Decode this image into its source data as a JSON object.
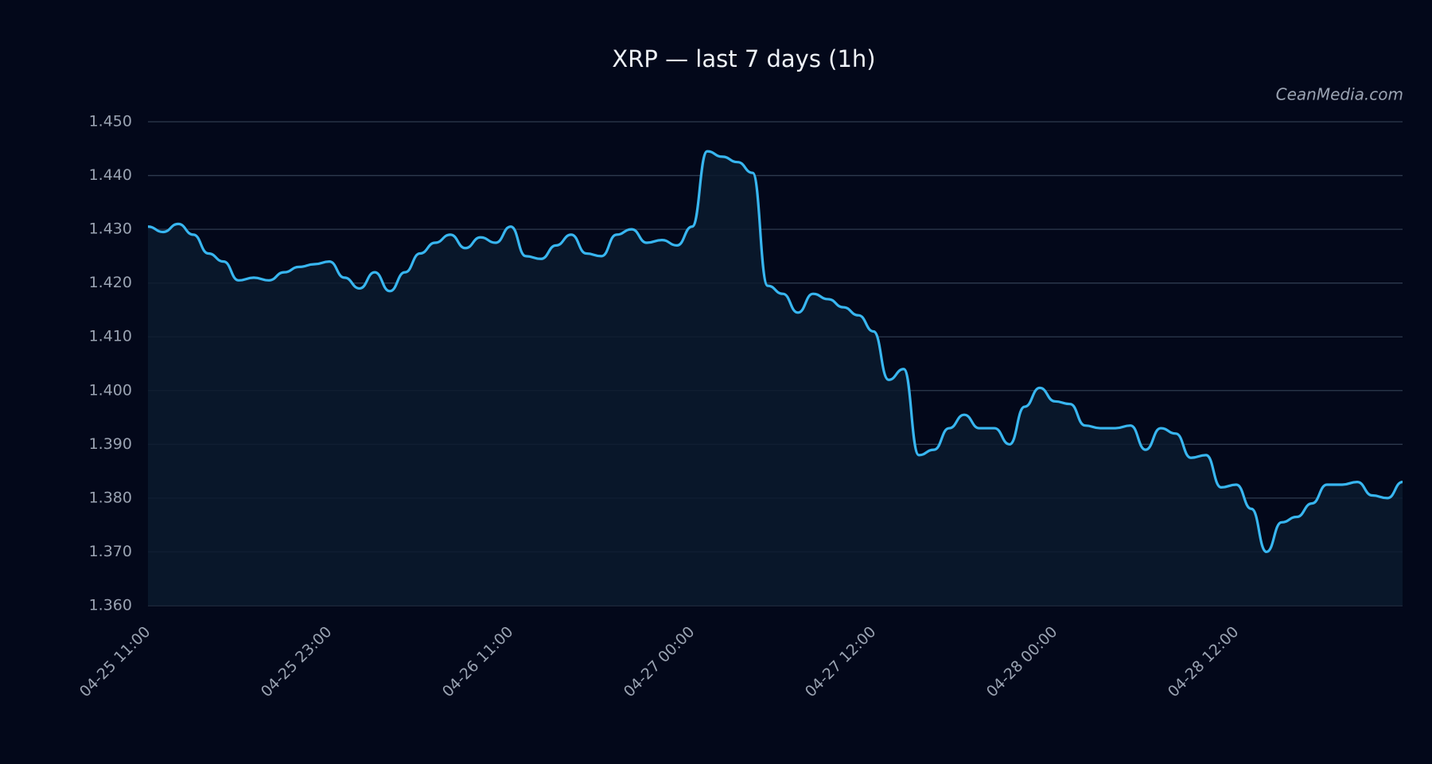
{
  "chart_data": {
    "type": "line",
    "title": "XRP — last 7 days (1h)",
    "watermark": "CeanMedia.com",
    "color": "#38b6f0",
    "fill": true,
    "grid": true,
    "categories": [
      "04-25 11:00",
      null,
      null,
      null,
      null,
      null,
      null,
      null,
      null,
      null,
      null,
      null,
      "04-25 23:00",
      null,
      null,
      null,
      null,
      null,
      null,
      null,
      null,
      null,
      null,
      null,
      "04-26 11:00",
      null,
      null,
      null,
      null,
      null,
      null,
      null,
      null,
      null,
      null,
      null,
      "04-27 00:00",
      null,
      null,
      null,
      null,
      null,
      null,
      null,
      null,
      null,
      null,
      null,
      "04-27 12:00",
      null,
      null,
      null,
      null,
      null,
      null,
      null,
      null,
      null,
      null,
      null,
      "04-28 00:00",
      null,
      null,
      null,
      null,
      null,
      null,
      null,
      null,
      null,
      null,
      null,
      "04-28 12:00",
      null,
      null,
      null,
      null,
      null,
      null,
      null,
      null,
      null,
      null,
      null
    ],
    "values": [
      1.4305,
      1.4295,
      1.431,
      1.429,
      1.4255,
      1.424,
      1.4205,
      1.421,
      1.4205,
      1.422,
      1.423,
      1.4235,
      1.424,
      1.421,
      1.419,
      1.422,
      1.4185,
      1.422,
      1.4255,
      1.4275,
      1.429,
      1.4265,
      1.4285,
      1.4275,
      1.4305,
      1.425,
      1.4245,
      1.427,
      1.429,
      1.4255,
      1.425,
      1.429,
      1.43,
      1.4275,
      1.428,
      1.427,
      1.4305,
      1.4445,
      1.4435,
      1.4425,
      1.4405,
      1.4195,
      1.418,
      1.4145,
      1.418,
      1.417,
      1.4155,
      1.414,
      1.411,
      1.402,
      1.404,
      1.388,
      1.389,
      1.393,
      1.3955,
      1.393,
      1.393,
      1.39,
      1.397,
      1.4005,
      1.398,
      1.3975,
      1.3935,
      1.393,
      1.393,
      1.3935,
      1.389,
      1.393,
      1.392,
      1.3875,
      1.388,
      1.382,
      1.3825,
      1.378,
      1.37,
      1.3755,
      1.3765,
      1.379,
      1.3825,
      1.3825,
      1.383,
      1.3805,
      1.38,
      1.383
    ],
    "ylim": [
      1.36,
      1.45
    ],
    "yticks": [
      {
        "value": 1.36,
        "label": "1.360"
      },
      {
        "value": 1.37,
        "label": "1.370"
      },
      {
        "value": 1.38,
        "label": "1.380"
      },
      {
        "value": 1.39,
        "label": "1.390"
      },
      {
        "value": 1.4,
        "label": "1.400"
      },
      {
        "value": 1.41,
        "label": "1.410"
      },
      {
        "value": 1.42,
        "label": "1.420"
      },
      {
        "value": 1.43,
        "label": "1.430"
      },
      {
        "value": 1.44,
        "label": "1.440"
      },
      {
        "value": 1.45,
        "label": "1.450"
      }
    ]
  }
}
